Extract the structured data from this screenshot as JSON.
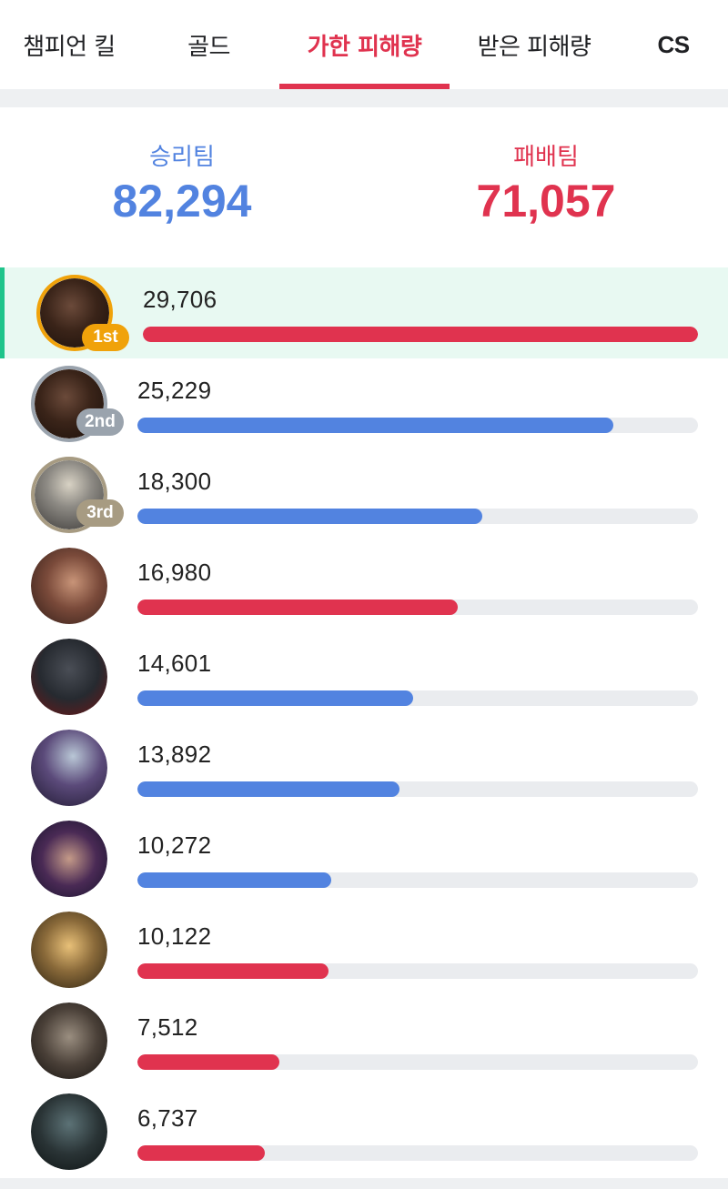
{
  "tabs": [
    {
      "label": "챔피언 킬",
      "active": false
    },
    {
      "label": "골드",
      "active": false
    },
    {
      "label": "가한 피해량",
      "active": true
    },
    {
      "label": "받은 피해량",
      "active": false
    },
    {
      "label": "CS",
      "active": false
    }
  ],
  "totals": {
    "win": {
      "label": "승리팀",
      "value": "82,294",
      "color": "#5283e0"
    },
    "lose": {
      "label": "패배팀",
      "value": "71,057",
      "color": "#e0334f"
    }
  },
  "colors": {
    "win": "#5283e0",
    "lose": "#e0334f",
    "highlight": "#1fc48b",
    "track": "#eaecef"
  },
  "players": [
    {
      "amount": "29,706",
      "value": 29706,
      "team": "lose",
      "rank": "1st",
      "avatar": "champion-portrait-1"
    },
    {
      "amount": "25,229",
      "value": 25229,
      "team": "win",
      "rank": "2nd",
      "avatar": "champion-portrait-2"
    },
    {
      "amount": "18,300",
      "value": 18300,
      "team": "win",
      "rank": "3rd",
      "avatar": "champion-portrait-3"
    },
    {
      "amount": "16,980",
      "value": 16980,
      "team": "lose",
      "rank": "",
      "avatar": "champion-portrait-4"
    },
    {
      "amount": "14,601",
      "value": 14601,
      "team": "win",
      "rank": "",
      "avatar": "champion-portrait-5"
    },
    {
      "amount": "13,892",
      "value": 13892,
      "team": "win",
      "rank": "",
      "avatar": "champion-portrait-6"
    },
    {
      "amount": "10,272",
      "value": 10272,
      "team": "win",
      "rank": "",
      "avatar": "champion-portrait-7"
    },
    {
      "amount": "10,122",
      "value": 10122,
      "team": "lose",
      "rank": "",
      "avatar": "champion-portrait-8"
    },
    {
      "amount": "7,512",
      "value": 7512,
      "team": "lose",
      "rank": "",
      "avatar": "champion-portrait-9"
    },
    {
      "amount": "6,737",
      "value": 6737,
      "team": "lose",
      "rank": "",
      "avatar": "champion-portrait-10"
    }
  ]
}
